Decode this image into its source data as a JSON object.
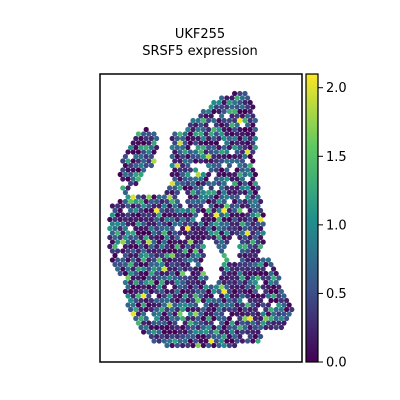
{
  "chart_data": {
    "type": "scatter",
    "subtype": "spatial-hexbin",
    "title_lines": [
      "UKF255",
      "SRSF5 expression"
    ],
    "xlabel": "",
    "ylabel": "",
    "colormap": "viridis",
    "color_range": [
      0.0,
      2.1
    ],
    "colorbar": {
      "ticks": [
        0.0,
        0.5,
        1.0,
        1.5,
        2.0
      ],
      "tick_labels": [
        "0.0",
        "0.5",
        "1.0",
        "1.5",
        "2.0"
      ],
      "placement": "right"
    },
    "legend": "none",
    "grid": false,
    "colors": {
      "low": "#440154",
      "mid": "#21918c",
      "high": "#fde725"
    }
  }
}
